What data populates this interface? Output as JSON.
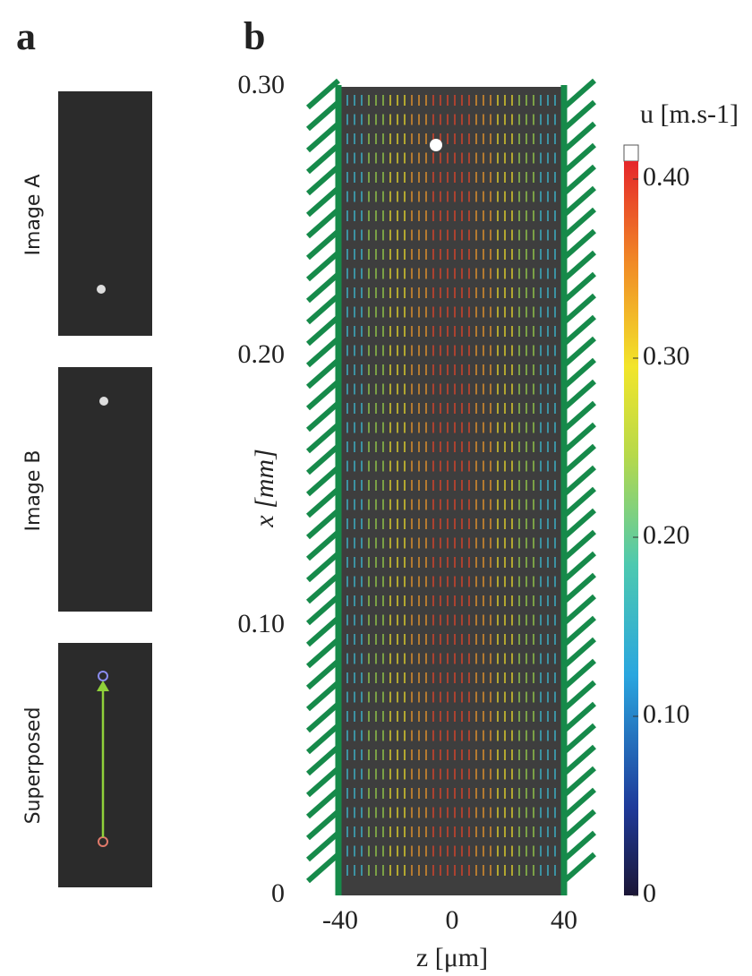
{
  "panel_a": {
    "label": "a",
    "images": [
      {
        "label": "Image A"
      },
      {
        "label": "Image B"
      },
      {
        "label": "Superposed"
      }
    ]
  },
  "panel_b": {
    "label": "b",
    "y_axis": {
      "label": "x [mm]",
      "lim": [
        0,
        0.3
      ],
      "ticks": [
        {
          "value": 0,
          "label": "0"
        },
        {
          "value": 0.1,
          "label": "0.10"
        },
        {
          "value": 0.2,
          "label": "0.20"
        },
        {
          "value": 0.3,
          "label": "0.30"
        }
      ]
    },
    "x_axis": {
      "label": "z [μm]",
      "lim": [
        -40,
        40
      ],
      "ticks": [
        -40,
        0,
        40
      ]
    },
    "colorbar": {
      "label": "u [m.s-1]",
      "lim": [
        0,
        0.41
      ],
      "ticks": [
        {
          "value": 0,
          "label": "0"
        },
        {
          "value": 0.1,
          "label": "0.10"
        },
        {
          "value": 0.2,
          "label": "0.20"
        },
        {
          "value": 0.3,
          "label": "0.30"
        },
        {
          "value": 0.4,
          "label": "0.40"
        }
      ]
    }
  }
}
